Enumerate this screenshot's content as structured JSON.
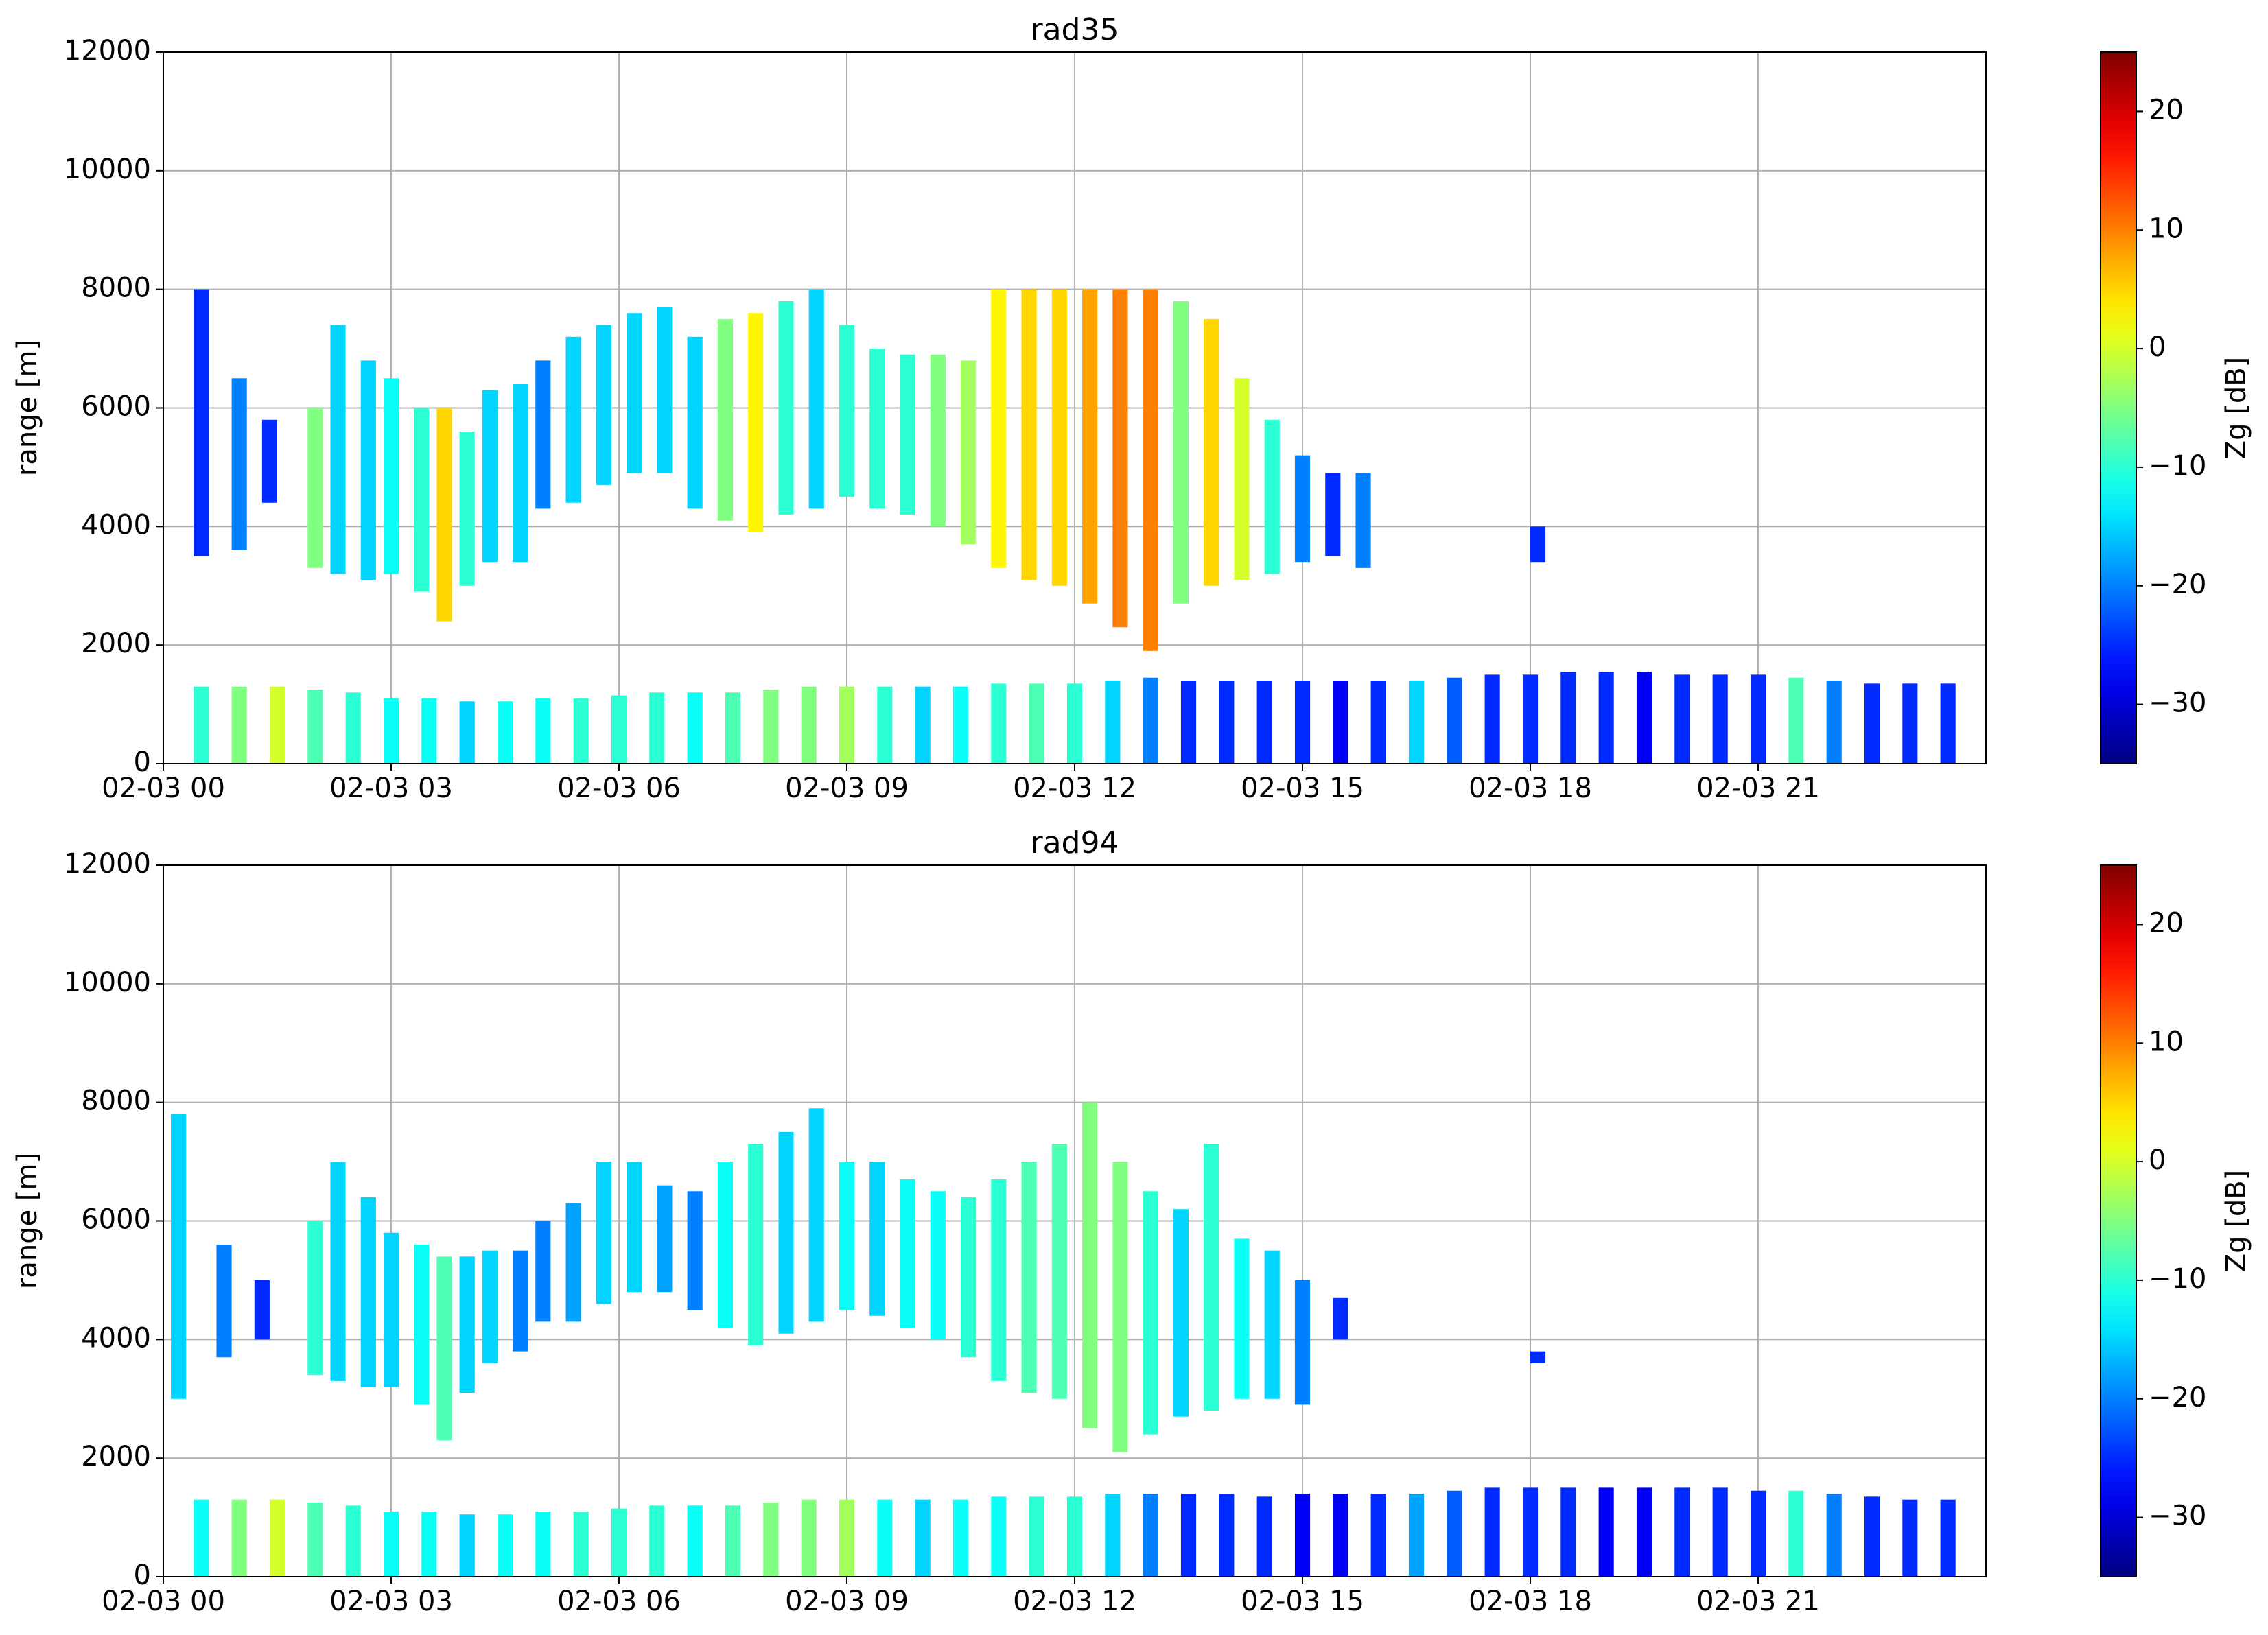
{
  "chart_data": [
    {
      "type": "range-columns",
      "title": "rad35",
      "ylabel": "range [m]",
      "colorbar_label": "Zg [dB]",
      "xlim": [
        0,
        24
      ],
      "xticks": [
        {
          "value": 0,
          "label": "02-03 00"
        },
        {
          "value": 3,
          "label": "02-03 03"
        },
        {
          "value": 6,
          "label": "02-03 06"
        },
        {
          "value": 9,
          "label": "02-03 09"
        },
        {
          "value": 12,
          "label": "02-03 12"
        },
        {
          "value": 15,
          "label": "02-03 15"
        },
        {
          "value": 18,
          "label": "02-03 18"
        },
        {
          "value": 21,
          "label": "02-03 21"
        }
      ],
      "ylim": [
        0,
        12000
      ],
      "yticks": [
        0,
        2000,
        4000,
        6000,
        8000,
        10000,
        12000
      ],
      "grid": true,
      "colormap": "jet",
      "clim": [
        -35,
        25
      ],
      "cticks": [
        {
          "value": -30,
          "label": "−30"
        },
        {
          "value": -20,
          "label": "−20"
        },
        {
          "value": -10,
          "label": "−10"
        },
        0,
        10,
        20
      ],
      "cells": {
        "x": [
          0.5,
          1.0,
          1.4,
          2.0,
          2.3,
          2.7,
          3.0,
          3.4,
          3.7,
          4.0,
          4.3,
          4.7,
          5.0,
          5.4,
          5.8,
          6.2,
          6.6,
          7.0,
          7.4,
          7.8,
          8.2,
          8.6,
          9.0,
          9.4,
          9.8,
          10.2,
          10.6,
          11.0,
          11.4,
          11.8,
          12.2,
          12.6,
          13.0,
          13.4,
          13.8,
          14.2,
          14.6,
          15.0,
          15.4,
          15.8,
          18.1,
          0.5,
          1.0,
          1.5,
          2.0,
          2.5,
          3.0,
          3.5,
          4.0,
          4.5,
          5.0,
          5.5,
          6.0,
          6.5,
          7.0,
          7.5,
          8.0,
          8.5,
          9.0,
          9.5,
          10.0,
          10.5,
          11.0,
          11.5,
          12.0,
          12.5,
          13.0,
          13.5,
          14.0,
          14.5,
          15.0,
          15.5,
          16.0,
          16.5,
          17.0,
          17.5,
          18.0,
          18.5,
          19.0,
          19.5,
          20.0,
          20.5,
          21.0,
          21.5,
          22.0,
          22.5,
          23.0,
          23.5
        ],
        "bottom": [
          3500,
          3600,
          4400,
          3300,
          3200,
          3100,
          3200,
          2900,
          2400,
          3000,
          3400,
          3400,
          4300,
          4400,
          4700,
          4900,
          4900,
          4300,
          4100,
          3900,
          4200,
          4300,
          4500,
          4300,
          4200,
          4000,
          3700,
          3300,
          3100,
          3000,
          2700,
          2300,
          1900,
          2700,
          3000,
          3100,
          3200,
          3400,
          3500,
          3300,
          3400,
          0,
          0,
          0,
          0,
          0,
          0,
          0,
          0,
          0,
          0,
          0,
          0,
          0,
          0,
          0,
          0,
          0,
          0,
          0,
          0,
          0,
          0,
          0,
          0,
          0,
          0,
          0,
          0,
          0,
          0,
          0,
          0,
          0,
          0,
          0,
          0,
          0,
          0,
          0,
          0,
          0,
          0,
          0,
          0,
          0,
          0,
          0
        ],
        "top": [
          8000,
          6500,
          5800,
          6000,
          7400,
          6800,
          6500,
          6000,
          6000,
          5600,
          6300,
          6400,
          6800,
          7200,
          7400,
          7600,
          7700,
          7200,
          7500,
          7600,
          7800,
          8000,
          7400,
          7000,
          6900,
          6900,
          6800,
          8000,
          8000,
          8000,
          8000,
          8000,
          8000,
          7800,
          7500,
          6500,
          5800,
          5200,
          4900,
          4900,
          4000,
          1300,
          1300,
          1300,
          1250,
          1200,
          1100,
          1100,
          1050,
          1050,
          1100,
          1100,
          1150,
          1200,
          1200,
          1200,
          1250,
          1300,
          1300,
          1300,
          1300,
          1300,
          1350,
          1350,
          1350,
          1400,
          1450,
          1400,
          1400,
          1400,
          1400,
          1400,
          1400,
          1400,
          1450,
          1500,
          1500,
          1550,
          1550,
          1550,
          1500,
          1500,
          1500,
          1450,
          1400,
          1350,
          1350,
          1350
        ],
        "values": [
          -25,
          -20,
          -25,
          -5,
          -15,
          -15,
          -12,
          -10,
          5,
          -10,
          -15,
          -15,
          -20,
          -15,
          -15,
          -15,
          -15,
          -15,
          -5,
          3,
          -10,
          -15,
          -10,
          -10,
          -10,
          -5,
          -3,
          3,
          5,
          5,
          8,
          10,
          10,
          -5,
          5,
          0,
          -10,
          -20,
          -25,
          -20,
          -25,
          -10,
          -5,
          0,
          -8,
          -10,
          -12,
          -12,
          -15,
          -12,
          -12,
          -10,
          -10,
          -10,
          -12,
          -8,
          -5,
          -5,
          -3,
          -10,
          -15,
          -12,
          -10,
          -8,
          -10,
          -15,
          -20,
          -25,
          -25,
          -25,
          -25,
          -28,
          -25,
          -15,
          -22,
          -25,
          -25,
          -25,
          -25,
          -28,
          -25,
          -25,
          -25,
          -8,
          -20,
          -25,
          -25,
          -25
        ]
      }
    },
    {
      "type": "range-columns",
      "title": "rad94",
      "ylabel": "range [m]",
      "colorbar_label": "Zg [dB]",
      "xlim": [
        0,
        24
      ],
      "xticks": [
        {
          "value": 0,
          "label": "02-03 00"
        },
        {
          "value": 3,
          "label": "02-03 03"
        },
        {
          "value": 6,
          "label": "02-03 06"
        },
        {
          "value": 9,
          "label": "02-03 09"
        },
        {
          "value": 12,
          "label": "02-03 12"
        },
        {
          "value": 15,
          "label": "02-03 15"
        },
        {
          "value": 18,
          "label": "02-03 18"
        },
        {
          "value": 21,
          "label": "02-03 21"
        }
      ],
      "ylim": [
        0,
        12000
      ],
      "yticks": [
        0,
        2000,
        4000,
        6000,
        8000,
        10000,
        12000
      ],
      "grid": true,
      "colormap": "jet",
      "clim": [
        -35,
        25
      ],
      "cticks": [
        {
          "value": -30,
          "label": "−30"
        },
        {
          "value": -20,
          "label": "−20"
        },
        {
          "value": -10,
          "label": "−10"
        },
        0,
        10,
        20
      ],
      "cells": {
        "x": [
          0.2,
          0.8,
          1.3,
          2.0,
          2.3,
          2.7,
          3.0,
          3.4,
          3.7,
          4.0,
          4.3,
          4.7,
          5.0,
          5.4,
          5.8,
          6.2,
          6.6,
          7.0,
          7.4,
          7.8,
          8.2,
          8.6,
          9.0,
          9.4,
          9.8,
          10.2,
          10.6,
          11.0,
          11.4,
          11.8,
          12.2,
          12.6,
          13.0,
          13.4,
          13.8,
          14.2,
          14.6,
          15.0,
          15.5,
          18.1,
          0.5,
          1.0,
          1.5,
          2.0,
          2.5,
          3.0,
          3.5,
          4.0,
          4.5,
          5.0,
          5.5,
          6.0,
          6.5,
          7.0,
          7.5,
          8.0,
          8.5,
          9.0,
          9.5,
          10.0,
          10.5,
          11.0,
          11.5,
          12.0,
          12.5,
          13.0,
          13.5,
          14.0,
          14.5,
          15.0,
          15.5,
          16.0,
          16.5,
          17.0,
          17.5,
          18.0,
          18.5,
          19.0,
          19.5,
          20.0,
          20.5,
          21.0,
          21.5,
          22.0,
          22.5,
          23.0,
          23.5
        ],
        "bottom": [
          3000,
          3700,
          4000,
          3400,
          3300,
          3200,
          3200,
          2900,
          2300,
          3100,
          3600,
          3800,
          4300,
          4300,
          4600,
          4800,
          4800,
          4500,
          4200,
          3900,
          4100,
          4300,
          4500,
          4400,
          4200,
          4000,
          3700,
          3300,
          3100,
          3000,
          2500,
          2100,
          2400,
          2700,
          2800,
          3000,
          3000,
          2900,
          4000,
          3600,
          0,
          0,
          0,
          0,
          0,
          0,
          0,
          0,
          0,
          0,
          0,
          0,
          0,
          0,
          0,
          0,
          0,
          0,
          0,
          0,
          0,
          0,
          0,
          0,
          0,
          0,
          0,
          0,
          0,
          0,
          0,
          0,
          0,
          0,
          0,
          0,
          0,
          0,
          0,
          0,
          0,
          0,
          0,
          0,
          0,
          0,
          0
        ],
        "top": [
          7800,
          5600,
          5000,
          6000,
          7000,
          6400,
          5800,
          5600,
          5400,
          5400,
          5500,
          5500,
          6000,
          6300,
          7000,
          7000,
          6600,
          6500,
          7000,
          7300,
          7500,
          7900,
          7000,
          7000,
          6700,
          6500,
          6400,
          6700,
          7000,
          7300,
          8000,
          7000,
          6500,
          6200,
          7300,
          5700,
          5500,
          5000,
          4700,
          3800,
          1300,
          1300,
          1300,
          1250,
          1200,
          1100,
          1100,
          1050,
          1050,
          1100,
          1100,
          1150,
          1200,
          1200,
          1200,
          1250,
          1300,
          1300,
          1300,
          1300,
          1300,
          1350,
          1350,
          1350,
          1400,
          1400,
          1400,
          1400,
          1350,
          1400,
          1400,
          1400,
          1400,
          1450,
          1500,
          1500,
          1500,
          1500,
          1500,
          1500,
          1500,
          1450,
          1450,
          1400,
          1350,
          1300,
          1300
        ],
        "values": [
          -15,
          -20,
          -25,
          -10,
          -15,
          -15,
          -15,
          -12,
          -8,
          -15,
          -15,
          -20,
          -20,
          -18,
          -15,
          -15,
          -18,
          -20,
          -12,
          -10,
          -15,
          -15,
          -12,
          -15,
          -12,
          -12,
          -10,
          -10,
          -8,
          -8,
          -5,
          -5,
          -10,
          -15,
          -10,
          -12,
          -15,
          -20,
          -25,
          -25,
          -12,
          -5,
          0,
          -8,
          -10,
          -12,
          -12,
          -15,
          -12,
          -12,
          -10,
          -10,
          -10,
          -12,
          -8,
          -5,
          -5,
          -3,
          -12,
          -15,
          -12,
          -12,
          -10,
          -10,
          -15,
          -20,
          -25,
          -25,
          -25,
          -28,
          -28,
          -25,
          -18,
          -22,
          -25,
          -25,
          -25,
          -28,
          -28,
          -25,
          -25,
          -25,
          -10,
          -20,
          -25,
          -25,
          -25
        ]
      }
    }
  ]
}
